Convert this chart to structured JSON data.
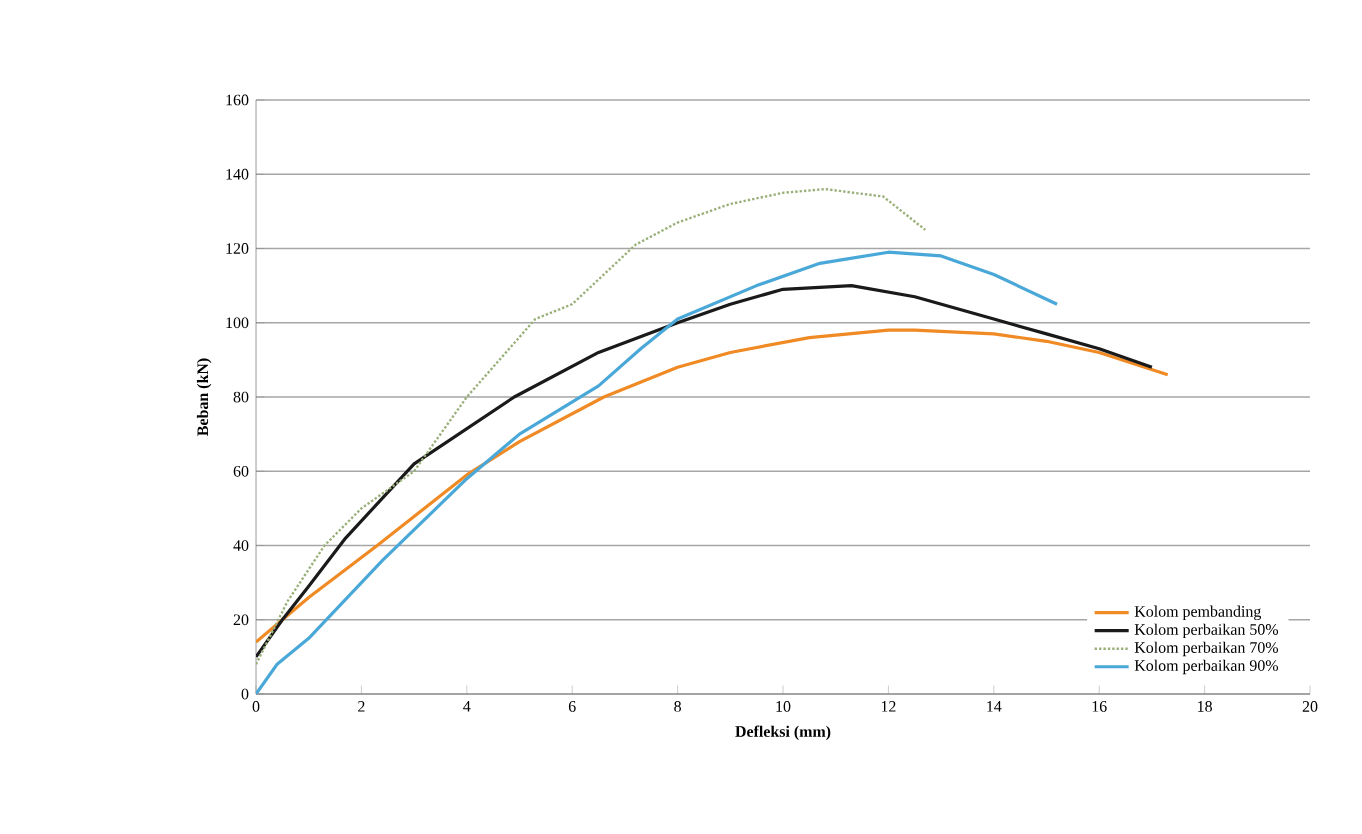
{
  "chart_data": {
    "type": "line",
    "xlabel": "Defleksi (mm)",
    "ylabel": "Beban (kN)",
    "xlim": [
      0,
      20
    ],
    "xticks": [
      0,
      2,
      4,
      6,
      8,
      10,
      12,
      14,
      16,
      18,
      20
    ],
    "ylim": [
      0,
      160
    ],
    "yticks": [
      0,
      20,
      40,
      60,
      80,
      100,
      120,
      140,
      160
    ],
    "grid": "y",
    "legend": "bottom right",
    "marker": "none",
    "series": [
      {
        "name": "Kolom pembanding",
        "color": "#f08a24",
        "line_style": "solid",
        "x": [
          0,
          1,
          2.3,
          4,
          5,
          6.6,
          8,
          9,
          10.5,
          12,
          12.5,
          14,
          15,
          16,
          17.3
        ],
        "values": [
          14,
          26,
          40,
          59,
          68,
          80,
          88,
          92,
          96,
          98,
          98,
          97,
          95,
          92,
          86
        ]
      },
      {
        "name": "Kolom perbaikan 50%",
        "color": "#1a1a1a",
        "line_style": "solid",
        "x": [
          0,
          0.5,
          1,
          1.7,
          3,
          4.9,
          6.5,
          8,
          9,
          10,
          11.3,
          12.5,
          14,
          15,
          16,
          17
        ],
        "values": [
          10,
          20,
          29,
          42,
          62,
          80,
          92,
          100,
          105,
          109,
          110,
          107,
          101,
          97,
          93,
          88
        ]
      },
      {
        "name": "Kolom perbaikan 70%",
        "color": "#9ab07a",
        "line_style": "dotted",
        "x": [
          0,
          0.6,
          1.3,
          2,
          3,
          4,
          5.3,
          6,
          7.2,
          8,
          9,
          10,
          10.8,
          11.9,
          12.7
        ],
        "values": [
          8,
          25,
          40,
          50,
          60,
          80,
          101,
          105,
          121,
          127,
          132,
          135,
          136,
          134,
          125
        ]
      },
      {
        "name": "Kolom perbaikan 90%",
        "color": "#4aa8d8",
        "line_style": "solid",
        "x": [
          0,
          0.4,
          1,
          2.4,
          4,
          5,
          6.5,
          7.3,
          8,
          9.5,
          10.7,
          12,
          13,
          14,
          15.2
        ],
        "values": [
          0,
          8,
          15,
          36,
          58,
          70,
          83,
          93,
          101,
          110,
          116,
          119,
          118,
          113,
          105
        ]
      }
    ]
  }
}
